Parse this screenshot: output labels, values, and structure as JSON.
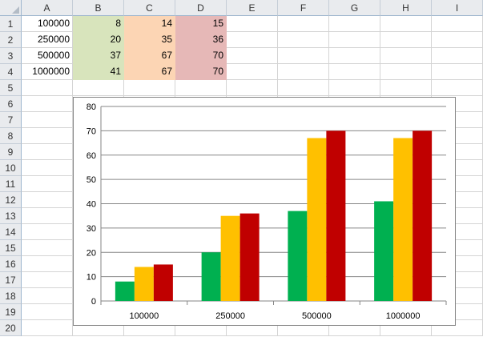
{
  "sheet": {
    "columns": [
      "A",
      "B",
      "C",
      "D",
      "E",
      "F",
      "G",
      "H",
      "I"
    ],
    "rows": [
      "1",
      "2",
      "3",
      "4",
      "5",
      "6",
      "7",
      "8",
      "9",
      "10",
      "11",
      "12",
      "13",
      "14",
      "15",
      "16",
      "17",
      "18",
      "19",
      "20"
    ],
    "data": [
      [
        "100000",
        "8",
        "14",
        "15"
      ],
      [
        "250000",
        "20",
        "35",
        "36"
      ],
      [
        "500000",
        "37",
        "67",
        "70"
      ],
      [
        "1000000",
        "41",
        "67",
        "70"
      ]
    ],
    "fill_colors": [
      "#ffffff",
      "#d8e4bc",
      "#fcd5b4",
      "#e6b8b7"
    ]
  },
  "chart_data": {
    "type": "bar",
    "categories": [
      "100000",
      "250000",
      "500000",
      "1000000"
    ],
    "series": [
      {
        "values": [
          8,
          20,
          37,
          41
        ],
        "color": "#00b050"
      },
      {
        "values": [
          14,
          35,
          67,
          67
        ],
        "color": "#ffc000"
      },
      {
        "values": [
          15,
          36,
          70,
          70
        ],
        "color": "#c00000"
      }
    ],
    "ylim": [
      0,
      80
    ],
    "yticks": [
      "0",
      "10",
      "20",
      "30",
      "40",
      "50",
      "60",
      "70",
      "80"
    ],
    "grid": true,
    "legend": "none",
    "title": "",
    "xlabel": "",
    "ylabel": ""
  }
}
